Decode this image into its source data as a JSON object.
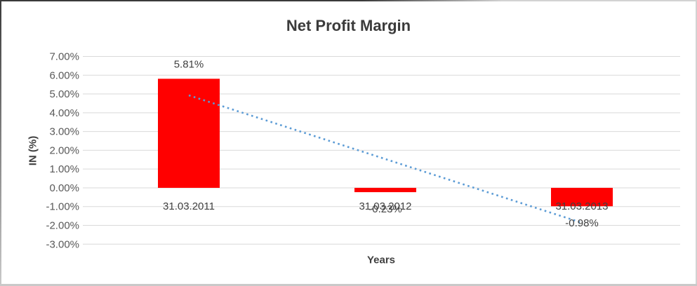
{
  "chart_data": {
    "type": "bar",
    "title": "Net Profit Margin",
    "xlabel": "Years",
    "ylabel": "IN (%)",
    "categories": [
      "31.03.2011",
      "31.03.2012",
      "31.03.2013"
    ],
    "values": [
      5.81,
      -0.23,
      -0.98
    ],
    "data_labels": [
      "5.81%",
      "-0.23%",
      "-0.98%"
    ],
    "ylim": [
      -3,
      7
    ],
    "ytick_labels": [
      "7.00%",
      "6.00%",
      "5.00%",
      "4.00%",
      "3.00%",
      "2.00%",
      "1.00%",
      "0.00%",
      "-1.00%",
      "-2.00%",
      "-3.00%"
    ],
    "grid": true,
    "legend": "none",
    "bar_color": "#FF0000",
    "gridline_color": "#D9D9D9",
    "tick_label_color": "#595959",
    "data_label_color": "#404040",
    "title_color": "#3B3B3B",
    "trendline": {
      "type": "linear",
      "style": "dotted",
      "color": "#5B9BD5"
    }
  }
}
